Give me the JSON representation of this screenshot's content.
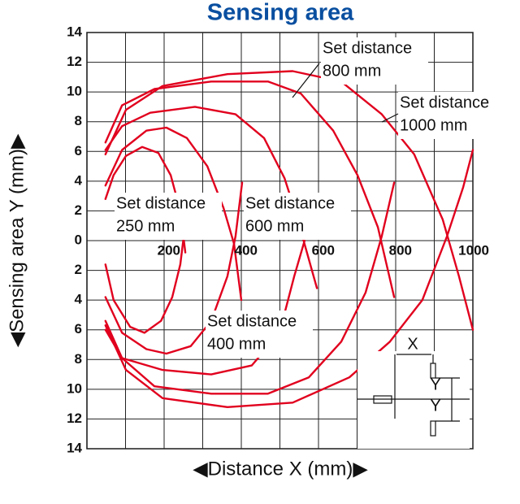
{
  "chart_data": {
    "type": "line",
    "title": "Sensing area",
    "x_label": "◀Distance X (mm)▶",
    "y_label": "◀Sensing area Y (mm)▶",
    "xlim": [
      0,
      1000
    ],
    "ylim": [
      -14,
      14
    ],
    "xticks": [
      200,
      400,
      600,
      800,
      1000
    ],
    "yticks": [
      {
        "value": -14,
        "label": "14"
      },
      {
        "value": -12,
        "label": "12"
      },
      {
        "value": -10,
        "label": "10"
      },
      {
        "value": -8,
        "label": "8"
      },
      {
        "value": -6,
        "label": "6"
      },
      {
        "value": -4,
        "label": "4"
      },
      {
        "value": -2,
        "label": "2"
      },
      0,
      2,
      4,
      6,
      8,
      10,
      12,
      14
    ],
    "grid": true,
    "series": [
      {
        "color": "#e1001e",
        "x": [
          48,
          69,
          101,
          143,
          185,
          217,
          242,
          255,
          null,
          48,
          69,
          112,
          149,
          192,
          221,
          242,
          251
        ],
        "values": [
          2.8,
          4.4,
          5.7,
          6.3,
          5.9,
          4.4,
          2.0,
          -0.8,
          null,
          -1.6,
          -4.0,
          -5.8,
          -6.2,
          -5.4,
          -3.8,
          -1.6,
          0.3
        ]
      },
      {
        "color": "#e1001e",
        "x": [
          48,
          91,
          154,
          206,
          259,
          312,
          354,
          381,
          400,
          null,
          48,
          91,
          154,
          206,
          269,
          322,
          364,
          385,
          402
        ],
        "values": [
          3.7,
          6.1,
          7.4,
          7.6,
          6.9,
          5.0,
          2.2,
          -0.2,
          -4.0,
          null,
          -3.8,
          -6.2,
          -7.3,
          -7.6,
          -7.1,
          -5.4,
          -2.4,
          0.3,
          3.9
        ]
      },
      {
        "color": "#e1001e",
        "x": [
          48,
          91,
          164,
          280,
          385,
          459,
          512,
          543,
          596,
          null,
          48,
          91,
          196,
          322,
          427,
          480,
          512,
          537,
          564
        ],
        "values": [
          6.1,
          7.7,
          8.6,
          9.0,
          8.5,
          6.9,
          4.2,
          1.7,
          -3.2,
          null,
          -6.0,
          -7.9,
          -8.7,
          -9.0,
          -8.4,
          -6.8,
          -4.9,
          -2.4,
          0
        ]
      },
      {
        "color": "#e1001e",
        "x": [
          48,
          91,
          175,
          322,
          469,
          554,
          638,
          701,
          754,
          796,
          null,
          48,
          91,
          175,
          322,
          469,
          575,
          659,
          722,
          764,
          796
        ],
        "values": [
          6.6,
          9.1,
          10.2,
          10.7,
          10.7,
          9.9,
          7.4,
          4.4,
          0.9,
          -3.8,
          null,
          -5.4,
          -7.9,
          -9.8,
          -10.3,
          -10.3,
          -9.2,
          -6.8,
          -3.5,
          0.3,
          3.9
        ]
      },
      {
        "color": "#e1001e",
        "x": [
          48,
          101,
          196,
          364,
          533,
          659,
          764,
          848,
          922,
          964,
          1000,
          null,
          48,
          101,
          196,
          364,
          533,
          680,
          785,
          869,
          933,
          975,
          1000
        ],
        "values": [
          5.8,
          8.8,
          10.4,
          11.2,
          11.4,
          10.7,
          8.5,
          5.8,
          1.4,
          -2.4,
          -6.0,
          null,
          -5.7,
          -8.7,
          -10.6,
          -11.2,
          -10.9,
          -9.2,
          -6.8,
          -4.0,
          0.3,
          3.6,
          6.1
        ]
      }
    ],
    "annotations": [
      {
        "lines": [
          "Set distance",
          "250 mm"
        ]
      },
      {
        "lines": [
          "Set distance",
          "400 mm"
        ]
      },
      {
        "lines": [
          "Set distance",
          "600 mm"
        ]
      },
      {
        "lines": [
          "Set distance",
          "800 mm"
        ]
      },
      {
        "lines": [
          "Set distance",
          "1000 mm"
        ]
      }
    ],
    "inset_labels": [
      "X",
      "Y",
      "Y"
    ]
  }
}
